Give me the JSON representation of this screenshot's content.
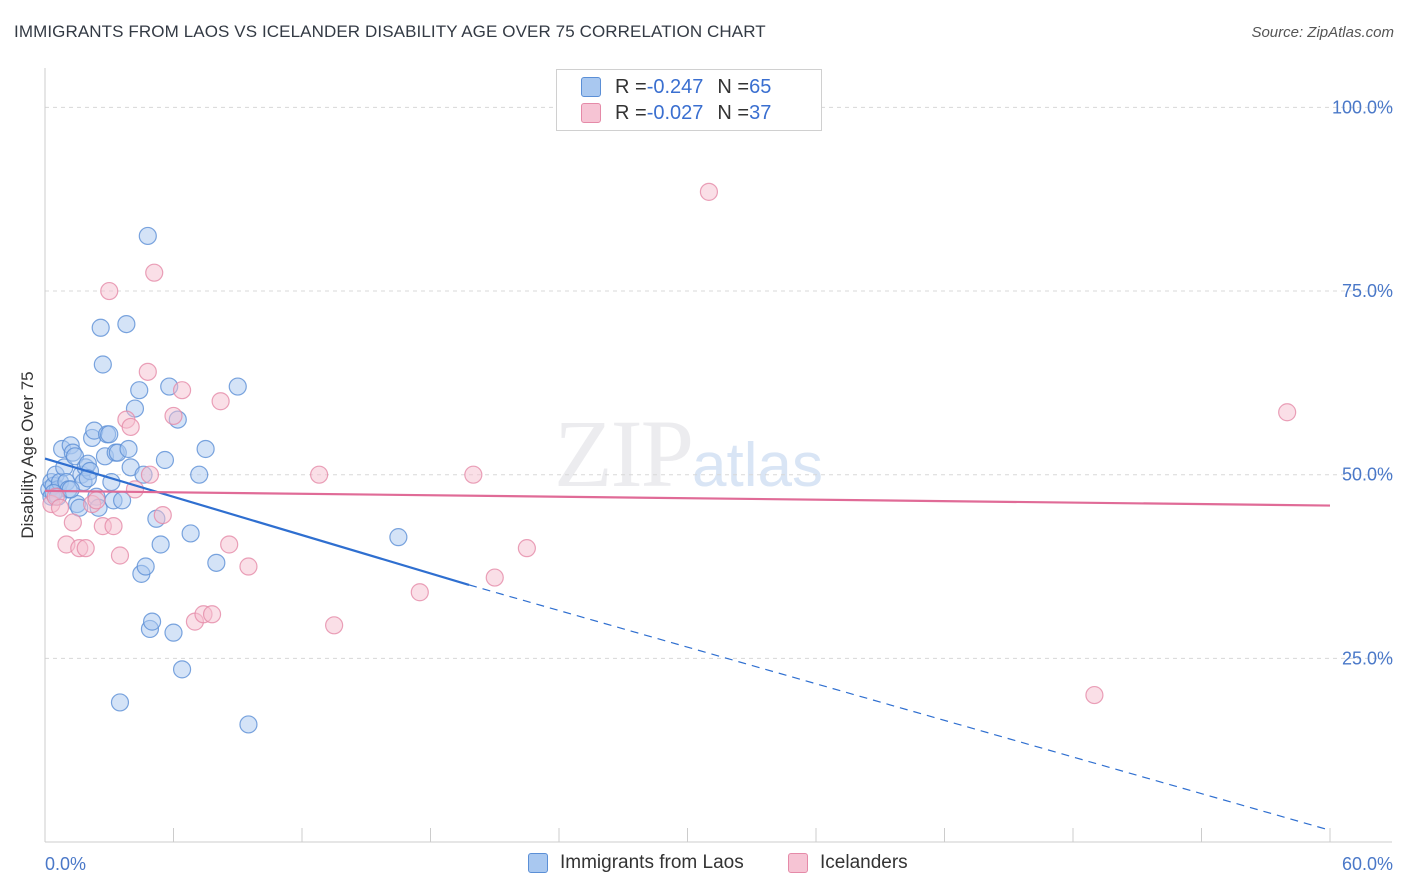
{
  "header": {
    "title": "IMMIGRANTS FROM LAOS VS ICELANDER DISABILITY AGE OVER 75 CORRELATION CHART",
    "source": "Source: ZipAtlas.com"
  },
  "watermark": {
    "zip": "ZIP",
    "atlas": "atlas"
  },
  "legend_top": {
    "rows": [
      {
        "r_label": "R = ",
        "r_value": "-0.247",
        "n_label": "N = ",
        "n_value": "65"
      },
      {
        "r_label": "R = ",
        "r_value": "-0.027",
        "n_label": "N = ",
        "n_value": "37"
      }
    ]
  },
  "legend_bottom": {
    "items": [
      {
        "label": "Immigrants from Laos"
      },
      {
        "label": "Icelanders"
      }
    ]
  },
  "colors": {
    "blue_fill": "#a9c8f0",
    "blue_stroke": "#5b8fd6",
    "blue_line": "#2f6fd0",
    "pink_fill": "#f6bfd0",
    "pink_stroke": "#e58aa8",
    "pink_line": "#e06b97",
    "grid": "#d8d8d8",
    "axis_label": "#4a78c8"
  },
  "chart_data": {
    "type": "scatter",
    "title": "IMMIGRANTS FROM LAOS VS ICELANDER DISABILITY AGE OVER 75 CORRELATION CHART",
    "xlabel": "",
    "ylabel": "Disability Age Over 75",
    "xlim": [
      0,
      60
    ],
    "ylim": [
      0,
      104
    ],
    "x_tick_labels": [
      {
        "value": 0,
        "label": "0.0%"
      },
      {
        "value": 60,
        "label": "60.0%"
      }
    ],
    "y_tick_labels": [
      {
        "value": 100,
        "label": "100.0%"
      },
      {
        "value": 75,
        "label": "75.0%"
      },
      {
        "value": 50,
        "label": "50.0%"
      },
      {
        "value": 25,
        "label": "25.0%"
      }
    ],
    "grid_y": [
      100,
      75,
      50,
      25
    ],
    "series": [
      {
        "name": "Immigrants from Laos",
        "color": "blue",
        "points": [
          [
            0.2,
            48
          ],
          [
            0.3,
            47
          ],
          [
            0.3,
            49
          ],
          [
            0.4,
            48.5
          ],
          [
            0.5,
            50
          ],
          [
            0.6,
            48
          ],
          [
            0.7,
            49
          ],
          [
            0.8,
            53.5
          ],
          [
            0.9,
            51
          ],
          [
            1.0,
            49
          ],
          [
            1.1,
            48
          ],
          [
            1.2,
            54
          ],
          [
            1.3,
            53
          ],
          [
            1.4,
            52.5
          ],
          [
            1.5,
            46
          ],
          [
            1.6,
            45.5
          ],
          [
            1.7,
            50
          ],
          [
            1.8,
            49
          ],
          [
            1.9,
            51
          ],
          [
            2.0,
            51.5
          ],
          [
            2.1,
            50.5
          ],
          [
            2.2,
            55
          ],
          [
            2.3,
            56
          ],
          [
            2.4,
            47
          ],
          [
            2.5,
            45.5
          ],
          [
            2.6,
            70
          ],
          [
            2.7,
            65
          ],
          [
            2.8,
            52.5
          ],
          [
            2.9,
            55.5
          ],
          [
            3.0,
            55.5
          ],
          [
            3.1,
            49
          ],
          [
            3.2,
            46.5
          ],
          [
            3.3,
            53
          ],
          [
            3.4,
            53
          ],
          [
            3.5,
            19
          ],
          [
            3.6,
            46.5
          ],
          [
            3.8,
            70.5
          ],
          [
            3.9,
            53.5
          ],
          [
            4.0,
            51
          ],
          [
            4.2,
            59
          ],
          [
            4.4,
            61.5
          ],
          [
            4.5,
            36.5
          ],
          [
            4.6,
            50
          ],
          [
            4.7,
            37.5
          ],
          [
            4.8,
            82.5
          ],
          [
            4.9,
            29
          ],
          [
            5.0,
            30
          ],
          [
            5.2,
            44
          ],
          [
            5.4,
            40.5
          ],
          [
            5.6,
            52
          ],
          [
            5.8,
            62
          ],
          [
            6.0,
            28.5
          ],
          [
            6.2,
            57.5
          ],
          [
            6.4,
            23.5
          ],
          [
            6.8,
            42
          ],
          [
            7.2,
            50
          ],
          [
            7.5,
            53.5
          ],
          [
            8.0,
            38
          ],
          [
            9.0,
            62
          ],
          [
            9.5,
            16
          ],
          [
            16.5,
            41.5
          ],
          [
            0.4,
            47.5
          ],
          [
            0.6,
            47
          ],
          [
            1.2,
            48
          ],
          [
            2.0,
            49.5
          ]
        ]
      },
      {
        "name": "Icelanders",
        "color": "pink",
        "points": [
          [
            0.3,
            46
          ],
          [
            0.5,
            47
          ],
          [
            0.7,
            45.5
          ],
          [
            1.0,
            40.5
          ],
          [
            1.3,
            43.5
          ],
          [
            1.6,
            40
          ],
          [
            1.9,
            40
          ],
          [
            2.2,
            46
          ],
          [
            2.4,
            46.5
          ],
          [
            2.7,
            43
          ],
          [
            3.0,
            75
          ],
          [
            3.2,
            43
          ],
          [
            3.5,
            39
          ],
          [
            3.8,
            57.5
          ],
          [
            4.0,
            56.5
          ],
          [
            4.2,
            48
          ],
          [
            4.8,
            64
          ],
          [
            4.9,
            50
          ],
          [
            5.1,
            77.5
          ],
          [
            5.5,
            44.5
          ],
          [
            6.0,
            58
          ],
          [
            6.4,
            61.5
          ],
          [
            7.0,
            30
          ],
          [
            7.4,
            31
          ],
          [
            7.8,
            31
          ],
          [
            8.2,
            60
          ],
          [
            8.6,
            40.5
          ],
          [
            9.5,
            37.5
          ],
          [
            12.8,
            50
          ],
          [
            13.5,
            29.5
          ],
          [
            17.5,
            34
          ],
          [
            20.0,
            50
          ],
          [
            21.0,
            36
          ],
          [
            22.5,
            40
          ],
          [
            31.0,
            88.5
          ],
          [
            49.0,
            20
          ],
          [
            58.0,
            58.5
          ]
        ]
      }
    ],
    "trend_lines": [
      {
        "series": "Immigrants from Laos",
        "solid": [
          [
            0,
            52.2
          ],
          [
            19.8,
            35
          ]
        ],
        "dashed": [
          [
            19.8,
            35
          ],
          [
            60,
            1.6
          ]
        ]
      },
      {
        "series": "Icelanders",
        "solid": [
          [
            0,
            47.8
          ],
          [
            60,
            45.8
          ]
        ]
      }
    ]
  }
}
